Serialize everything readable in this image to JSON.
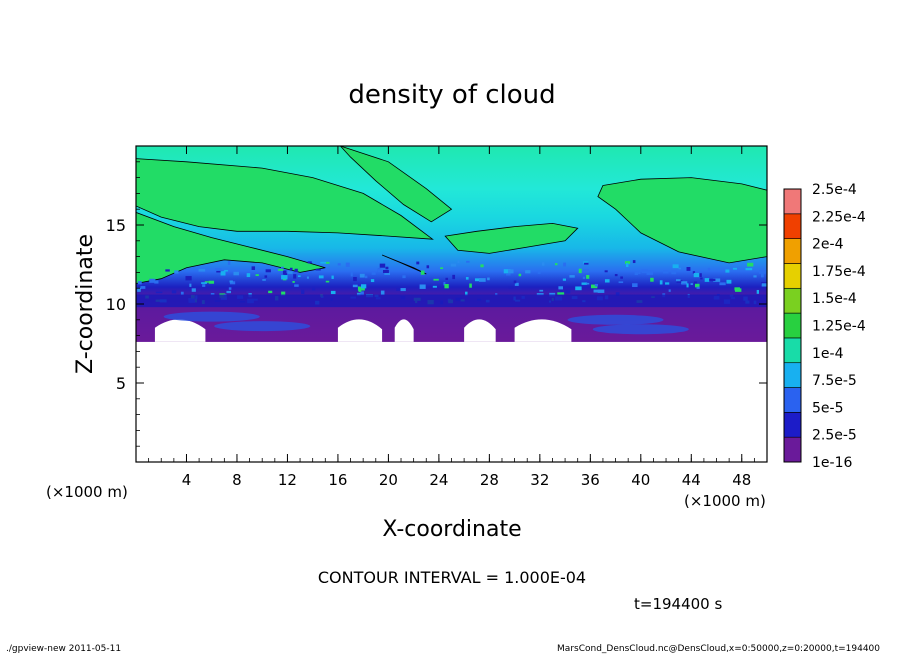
{
  "footer": {
    "left": "./gpview-new  2011-05-11",
    "right": "MarsCond_DensCloud.nc@DensCloud,x=0:50000,z=0:20000,t=194400"
  },
  "chart_data": {
    "type": "heatmap",
    "title": "density of cloud",
    "xlabel": "X-coordinate",
    "ylabel": "Z-coordinate",
    "x_unit": "(×1000 m)",
    "y_unit": "(×1000 m)",
    "xlim": [
      0,
      50
    ],
    "ylim": [
      0,
      20
    ],
    "x_ticks": [
      4,
      8,
      12,
      16,
      20,
      24,
      28,
      32,
      36,
      40,
      44,
      48
    ],
    "y_ticks": [
      5,
      10,
      15
    ],
    "contour_interval_text": "CONTOUR INTERVAL = 1.000E-04",
    "time_text": "t=194400 s",
    "colorbar": {
      "labels": [
        "1e-16",
        "2.5e-5",
        "5e-5",
        "7.5e-5",
        "1e-4",
        "1.25e-4",
        "1.5e-4",
        "1.75e-4",
        "2e-4",
        "2.25e-4",
        "2.5e-4"
      ],
      "colors": [
        "#6a1a9a",
        "#1c1cc8",
        "#2a62f0",
        "#18b0f0",
        "#18dca8",
        "#28d040",
        "#7ad020",
        "#e6d000",
        "#f0a000",
        "#f04000",
        "#f07878"
      ]
    },
    "cloud_bottom_z": 7.6,
    "cloud_top_z": 20,
    "gaps_in_lower_cloud_x": [
      [
        1.5,
        5.5
      ],
      [
        16,
        19.5
      ],
      [
        20.5,
        22
      ],
      [
        26,
        28.5
      ],
      [
        30,
        34.5
      ]
    ],
    "contour_1e-4_regions": [
      "green band 11–19 km on left, tapering toward x=24",
      "green tongue near x=16–23, z=20–17",
      "green patch x=36–50, z=17.5–14"
    ]
  }
}
